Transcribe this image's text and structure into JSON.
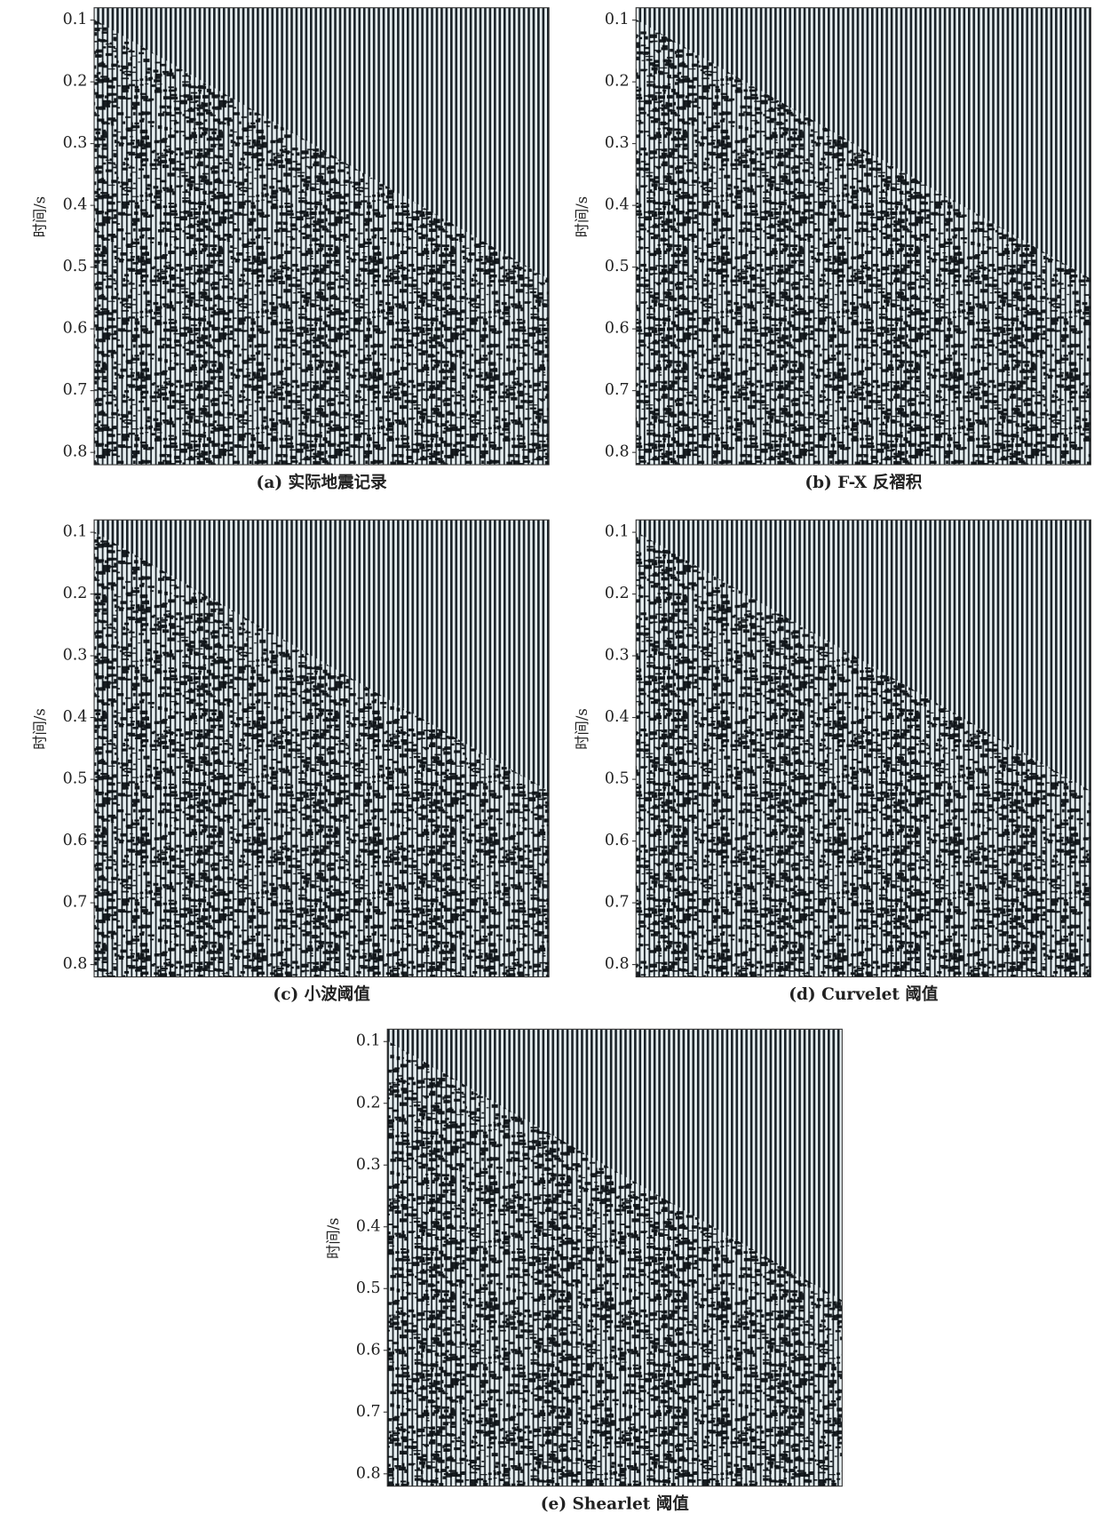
{
  "panels": [
    {
      "caption": "(a) 实际地震记录",
      "ylabel": "时间/s",
      "ylim": [
        0.08,
        0.82
      ],
      "yticks": [
        0.1,
        0.2,
        0.3,
        0.4,
        0.5,
        0.6,
        0.7,
        0.8
      ]
    },
    {
      "caption": "(b) F-X 反褶积",
      "ylabel": "时间/s",
      "ylim": [
        0.08,
        0.82
      ],
      "yticks": [
        0.1,
        0.2,
        0.3,
        0.4,
        0.5,
        0.6,
        0.7,
        0.8
      ]
    },
    {
      "caption": "(c) 小波阈值",
      "ylabel": "时间/s",
      "ylim": [
        0.08,
        0.82
      ],
      "yticks": [
        0.1,
        0.2,
        0.3,
        0.4,
        0.5,
        0.6,
        0.7,
        0.8
      ]
    },
    {
      "caption": "(d) Curvelet 阈值",
      "ylabel": "时间/s",
      "ylim": [
        0.08,
        0.82
      ],
      "yticks": [
        0.1,
        0.2,
        0.3,
        0.4,
        0.5,
        0.6,
        0.7,
        0.8
      ]
    },
    {
      "caption": "(e) Shearlet 阈值",
      "ylabel": "时间/s",
      "ylim": [
        0.08,
        0.82
      ],
      "yticks": [
        0.1,
        0.2,
        0.3,
        0.4,
        0.5,
        0.6,
        0.7,
        0.8
      ]
    }
  ]
}
